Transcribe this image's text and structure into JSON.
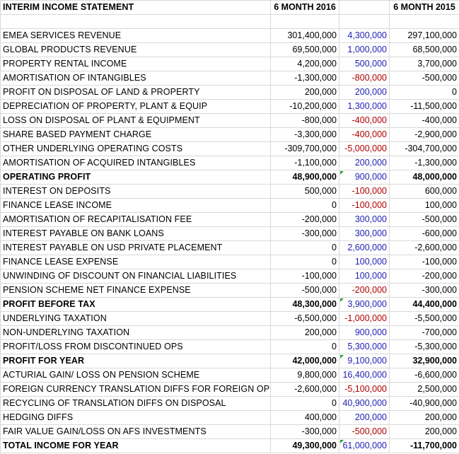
{
  "header": {
    "title": "INTERIM INCOME STATEMENT",
    "col_2016": "6 MONTH 2016",
    "col_variance": "",
    "col_2015": "6 MONTH 2015"
  },
  "rows": [
    {
      "label": "EMEA SERVICES REVENUE",
      "v2016": "301,400,000",
      "var": "4,300,000",
      "v2015": "297,100,000"
    },
    {
      "label": "GLOBAL PRODUCTS REVENUE",
      "v2016": "69,500,000",
      "var": "1,000,000",
      "v2015": "68,500,000"
    },
    {
      "label": "PROPERTY RENTAL INCOME",
      "v2016": "4,200,000",
      "var": "500,000",
      "v2015": "3,700,000"
    },
    {
      "label": "AMORTISATION OF INTANGIBLES",
      "v2016": "-1,300,000",
      "var": "-800,000",
      "v2015": "-500,000"
    },
    {
      "label": "PROFIT ON DISPOSAL OF LAND & PROPERTY",
      "v2016": "200,000",
      "var": "200,000",
      "v2015": "0"
    },
    {
      "label": "DEPRECIATION OF PROPERTY, PLANT & EQUIP",
      "v2016": "-10,200,000",
      "var": "1,300,000",
      "v2015": "-11,500,000"
    },
    {
      "label": "LOSS ON DISPOSAL OF PLANT & EQUIPMENT",
      "v2016": "-800,000",
      "var": "-400,000",
      "v2015": "-400,000"
    },
    {
      "label": "SHARE BASED PAYMENT CHARGE",
      "v2016": "-3,300,000",
      "var": "-400,000",
      "v2015": "-2,900,000"
    },
    {
      "label": "OTHER UNDERLYING OPERATING COSTS",
      "v2016": "-309,700,000",
      "var": "-5,000,000",
      "v2015": "-304,700,000"
    },
    {
      "label": "AMORTISATION OF ACQUIRED INTANGIBLES",
      "v2016": "-1,100,000",
      "var": "200,000",
      "v2015": "-1,300,000"
    },
    {
      "label": "OPERATING PROFIT",
      "v2016": "48,900,000",
      "var": "900,000",
      "v2015": "48,000,000",
      "bold": true,
      "flag": true
    },
    {
      "label": "INTEREST ON DEPOSITS",
      "v2016": "500,000",
      "var": "-100,000",
      "v2015": "600,000"
    },
    {
      "label": "FINANCE LEASE INCOME",
      "v2016": "0",
      "var": "-100,000",
      "v2015": "100,000"
    },
    {
      "label": "AMORTISATION OF RECAPITALISATION FEE",
      "v2016": "-200,000",
      "var": "300,000",
      "v2015": "-500,000"
    },
    {
      "label": "INTEREST PAYABLE ON BANK LOANS",
      "v2016": "-300,000",
      "var": "300,000",
      "v2015": "-600,000"
    },
    {
      "label": "INTEREST PAYABLE ON USD PRIVATE PLACEMENT",
      "v2016": "0",
      "var": "2,600,000",
      "v2015": "-2,600,000"
    },
    {
      "label": "FINANCE LEASE EXPENSE",
      "v2016": "0",
      "var": "100,000",
      "v2015": "-100,000"
    },
    {
      "label": "UNWINDING OF DISCOUNT ON FINANCIAL LIABILITIES",
      "v2016": "-100,000",
      "var": "100,000",
      "v2015": "-200,000"
    },
    {
      "label": "PENSION SCHEME NET FINANCE EXPENSE",
      "v2016": "-500,000",
      "var": "-200,000",
      "v2015": "-300,000"
    },
    {
      "label": "PROFIT BEFORE TAX",
      "v2016": "48,300,000",
      "var": "3,900,000",
      "v2015": "44,400,000",
      "bold": true,
      "flag": true
    },
    {
      "label": "UNDERLYING TAXATION",
      "v2016": "-6,500,000",
      "var": "-1,000,000",
      "v2015": "-5,500,000"
    },
    {
      "label": "NON-UNDERLYING TAXATION",
      "v2016": "200,000",
      "var": "900,000",
      "v2015": "-700,000"
    },
    {
      "label": "PROFIT/LOSS FROM DISCONTINUED OPS",
      "v2016": "0",
      "var": "5,300,000",
      "v2015": "-5,300,000"
    },
    {
      "label": "PROFIT FOR YEAR",
      "v2016": "42,000,000",
      "var": "9,100,000",
      "v2015": "32,900,000",
      "bold": true,
      "flag": true
    },
    {
      "label": "ACTURIAL GAIN/ LOSS ON PENSION SCHEME",
      "v2016": "9,800,000",
      "var": "16,400,000",
      "v2015": "-6,600,000"
    },
    {
      "label": "FOREIGN CURRENCY TRANSLATION DIFFS FOR FOREIGN OPS",
      "v2016": "-2,600,000",
      "var": "-5,100,000",
      "v2015": "2,500,000"
    },
    {
      "label": "RECYCLING OF TRANSLATION DIFFS ON DISPOSAL",
      "v2016": "0",
      "var": "40,900,000",
      "v2015": "-40,900,000"
    },
    {
      "label": "HEDGING DIFFS",
      "v2016": "400,000",
      "var": "200,000",
      "v2015": "200,000"
    },
    {
      "label": "FAIR VALUE GAIN/LOSS ON AFS INVESTMENTS",
      "v2016": "-300,000",
      "var": "-500,000",
      "v2015": "200,000"
    },
    {
      "label": "TOTAL INCOME FOR YEAR",
      "v2016": "49,300,000",
      "var": "61,000,000",
      "v2015": "-11,700,000",
      "bold": true,
      "flag": true
    }
  ],
  "colors": {
    "positive_variance": "#1f1fb4",
    "negative_variance": "#b00000",
    "gridline": "#d9d9d9",
    "comment_flag": "#2e9b2e"
  }
}
